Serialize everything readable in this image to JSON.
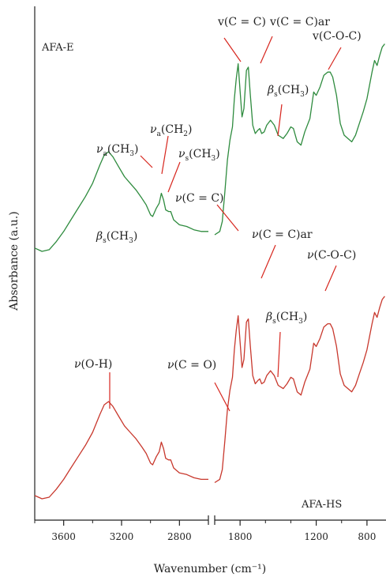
{
  "chart_data": {
    "type": "line",
    "title": "",
    "xlabel": "Wavenumber (cm⁻¹)",
    "ylabel": "Absorbance (a.u.)",
    "x_axis": {
      "reversed": true,
      "broken": true,
      "segments": [
        {
          "range": [
            3800,
            2600
          ],
          "ticks": [
            3600,
            3200,
            2800
          ]
        },
        {
          "range": [
            2000,
            650
          ],
          "ticks": [
            1800,
            1200,
            800
          ]
        }
      ]
    },
    "grid": false,
    "series": [
      {
        "name": "AFA-E",
        "color": "#2e8b3e",
        "points": [
          [
            3800,
            0.02
          ],
          [
            3750,
            0.0
          ],
          [
            3700,
            0.01
          ],
          [
            3650,
            0.06
          ],
          [
            3600,
            0.12
          ],
          [
            3550,
            0.19
          ],
          [
            3500,
            0.26
          ],
          [
            3450,
            0.33
          ],
          [
            3400,
            0.41
          ],
          [
            3350,
            0.52
          ],
          [
            3320,
            0.58
          ],
          [
            3290,
            0.6
          ],
          [
            3260,
            0.57
          ],
          [
            3220,
            0.51
          ],
          [
            3180,
            0.45
          ],
          [
            3140,
            0.41
          ],
          [
            3100,
            0.37
          ],
          [
            3060,
            0.32
          ],
          [
            3030,
            0.28
          ],
          [
            3000,
            0.22
          ],
          [
            2985,
            0.21
          ],
          [
            2960,
            0.26
          ],
          [
            2940,
            0.29
          ],
          [
            2925,
            0.35
          ],
          [
            2910,
            0.31
          ],
          [
            2895,
            0.25
          ],
          [
            2875,
            0.24
          ],
          [
            2860,
            0.24
          ],
          [
            2840,
            0.19
          ],
          [
            2800,
            0.16
          ],
          [
            2750,
            0.15
          ],
          [
            2700,
            0.13
          ],
          [
            2650,
            0.12
          ],
          [
            2600,
            0.12
          ],
          null,
          [
            2000,
            0.1
          ],
          [
            1960,
            0.12
          ],
          [
            1940,
            0.18
          ],
          [
            1920,
            0.36
          ],
          [
            1900,
            0.55
          ],
          [
            1880,
            0.67
          ],
          [
            1860,
            0.75
          ],
          [
            1845,
            0.92
          ],
          [
            1830,
            1.04
          ],
          [
            1815,
            1.13
          ],
          [
            1800,
            0.97
          ],
          [
            1785,
            0.81
          ],
          [
            1770,
            0.86
          ],
          [
            1750,
            1.09
          ],
          [
            1735,
            1.11
          ],
          [
            1720,
            0.95
          ],
          [
            1700,
            0.76
          ],
          [
            1680,
            0.71
          ],
          [
            1660,
            0.73
          ],
          [
            1645,
            0.74
          ],
          [
            1630,
            0.71
          ],
          [
            1610,
            0.72
          ],
          [
            1590,
            0.76
          ],
          [
            1560,
            0.79
          ],
          [
            1530,
            0.76
          ],
          [
            1500,
            0.7
          ],
          [
            1460,
            0.68
          ],
          [
            1430,
            0.71
          ],
          [
            1400,
            0.75
          ],
          [
            1380,
            0.74
          ],
          [
            1350,
            0.66
          ],
          [
            1320,
            0.64
          ],
          [
            1290,
            0.72
          ],
          [
            1250,
            0.8
          ],
          [
            1220,
            0.96
          ],
          [
            1200,
            0.94
          ],
          [
            1170,
            0.99
          ],
          [
            1140,
            1.06
          ],
          [
            1110,
            1.08
          ],
          [
            1090,
            1.08
          ],
          [
            1070,
            1.05
          ],
          [
            1040,
            0.94
          ],
          [
            1010,
            0.77
          ],
          [
            980,
            0.7
          ],
          [
            950,
            0.68
          ],
          [
            920,
            0.66
          ],
          [
            890,
            0.7
          ],
          [
            860,
            0.77
          ],
          [
            830,
            0.84
          ],
          [
            800,
            0.92
          ],
          [
            780,
            1.0
          ],
          [
            760,
            1.08
          ],
          [
            740,
            1.15
          ],
          [
            720,
            1.12
          ],
          [
            700,
            1.18
          ],
          [
            680,
            1.23
          ],
          [
            660,
            1.25
          ]
        ]
      },
      {
        "name": "AFA-HS",
        "color": "#c8382d",
        "points": [
          [
            3800,
            0.02
          ],
          [
            3750,
            0.0
          ],
          [
            3700,
            0.01
          ],
          [
            3650,
            0.06
          ],
          [
            3600,
            0.12
          ],
          [
            3550,
            0.19
          ],
          [
            3500,
            0.26
          ],
          [
            3450,
            0.33
          ],
          [
            3400,
            0.41
          ],
          [
            3350,
            0.52
          ],
          [
            3320,
            0.58
          ],
          [
            3290,
            0.6
          ],
          [
            3260,
            0.57
          ],
          [
            3220,
            0.51
          ],
          [
            3180,
            0.45
          ],
          [
            3140,
            0.41
          ],
          [
            3100,
            0.37
          ],
          [
            3060,
            0.32
          ],
          [
            3030,
            0.28
          ],
          [
            3000,
            0.22
          ],
          [
            2985,
            0.21
          ],
          [
            2960,
            0.26
          ],
          [
            2940,
            0.29
          ],
          [
            2925,
            0.35
          ],
          [
            2910,
            0.31
          ],
          [
            2895,
            0.25
          ],
          [
            2875,
            0.24
          ],
          [
            2860,
            0.24
          ],
          [
            2840,
            0.19
          ],
          [
            2800,
            0.16
          ],
          [
            2750,
            0.15
          ],
          [
            2700,
            0.13
          ],
          [
            2650,
            0.12
          ],
          [
            2600,
            0.12
          ],
          null,
          [
            2000,
            0.1
          ],
          [
            1960,
            0.12
          ],
          [
            1940,
            0.18
          ],
          [
            1920,
            0.36
          ],
          [
            1900,
            0.55
          ],
          [
            1880,
            0.67
          ],
          [
            1860,
            0.75
          ],
          [
            1845,
            0.92
          ],
          [
            1830,
            1.04
          ],
          [
            1815,
            1.13
          ],
          [
            1800,
            0.97
          ],
          [
            1785,
            0.81
          ],
          [
            1770,
            0.86
          ],
          [
            1750,
            1.09
          ],
          [
            1735,
            1.11
          ],
          [
            1720,
            0.95
          ],
          [
            1700,
            0.76
          ],
          [
            1680,
            0.71
          ],
          [
            1660,
            0.73
          ],
          [
            1645,
            0.74
          ],
          [
            1630,
            0.71
          ],
          [
            1610,
            0.72
          ],
          [
            1590,
            0.76
          ],
          [
            1560,
            0.79
          ],
          [
            1530,
            0.76
          ],
          [
            1500,
            0.7
          ],
          [
            1460,
            0.68
          ],
          [
            1430,
            0.71
          ],
          [
            1400,
            0.75
          ],
          [
            1380,
            0.74
          ],
          [
            1350,
            0.66
          ],
          [
            1320,
            0.64
          ],
          [
            1290,
            0.72
          ],
          [
            1250,
            0.8
          ],
          [
            1220,
            0.96
          ],
          [
            1200,
            0.94
          ],
          [
            1170,
            0.99
          ],
          [
            1140,
            1.06
          ],
          [
            1110,
            1.08
          ],
          [
            1090,
            1.08
          ],
          [
            1070,
            1.05
          ],
          [
            1040,
            0.94
          ],
          [
            1010,
            0.77
          ],
          [
            980,
            0.7
          ],
          [
            950,
            0.68
          ],
          [
            920,
            0.66
          ],
          [
            890,
            0.7
          ],
          [
            860,
            0.77
          ],
          [
            830,
            0.84
          ],
          [
            800,
            0.92
          ],
          [
            780,
            1.0
          ],
          [
            760,
            1.08
          ],
          [
            740,
            1.15
          ],
          [
            720,
            1.12
          ],
          [
            700,
            1.18
          ],
          [
            680,
            1.23
          ],
          [
            660,
            1.25
          ]
        ]
      }
    ],
    "annotations": [
      {
        "series": "AFA-E",
        "pre": "v",
        "sub": "",
        "mid": "(C = C)",
        "sub2": "",
        "post": "",
        "italic": false,
        "target_wn": 1815
      },
      {
        "series": "AFA-E",
        "pre": "v",
        "sub": "",
        "mid": "(C = C)ar",
        "sub2": "",
        "post": "",
        "italic": false,
        "target_wn": 1735
      },
      {
        "series": "AFA-E",
        "pre": "v",
        "sub": "",
        "mid": "(C-O-C)",
        "sub2": "",
        "post": "",
        "italic": false,
        "target_wn": 1090
      },
      {
        "series": "AFA-E",
        "pre": "β",
        "sub": "s",
        "mid": "(CH",
        "sub2": "3",
        "post": ")",
        "italic": true,
        "target_wn": 1460
      },
      {
        "series": "AFA-E",
        "pre": "ν",
        "sub": "a",
        "mid": "(CH",
        "sub2": "3",
        "post": ")",
        "italic": true,
        "target_wn": 2985
      },
      {
        "series": "AFA-E",
        "pre": "ν",
        "sub": "a",
        "mid": "(CH",
        "sub2": "2",
        "post": ")",
        "italic": true,
        "target_wn": 2925
      },
      {
        "series": "AFA-E",
        "pre": "ν",
        "sub": "s",
        "mid": "(CH",
        "sub2": "3",
        "post": ")",
        "italic": true,
        "target_wn": 2860
      },
      {
        "series": "AFA-E",
        "pre": "β",
        "sub": "s",
        "mid": "(CH",
        "sub2": "3",
        "post": ")",
        "italic": true,
        "target_wn": null
      },
      {
        "series": "AFA-HS",
        "pre": "ν",
        "sub": "",
        "mid": "(C = C)",
        "sub2": "",
        "post": "",
        "italic": true,
        "target_wn": 1815
      },
      {
        "series": "AFA-HS",
        "pre": "ν",
        "sub": "",
        "mid": "(C = C)ar",
        "sub2": "",
        "post": "",
        "italic": true,
        "target_wn": 1735
      },
      {
        "series": "AFA-HS",
        "pre": "ν",
        "sub": "",
        "mid": "(C-O-C)",
        "sub2": "",
        "post": "",
        "italic": true,
        "target_wn": 1090
      },
      {
        "series": "AFA-HS",
        "pre": "β",
        "sub": "s",
        "mid": "(CH",
        "sub2": "3",
        "post": ")",
        "italic": true,
        "target_wn": 1460
      },
      {
        "series": "AFA-HS",
        "pre": "ν",
        "sub": "",
        "mid": "(O-H)",
        "sub2": "",
        "post": "",
        "italic": true,
        "target_wn": 3290
      },
      {
        "series": "AFA-HS",
        "pre": "ν",
        "sub": "",
        "mid": "(C = O)",
        "sub2": "",
        "post": "",
        "italic": true,
        "target_wn": 1900
      }
    ]
  }
}
